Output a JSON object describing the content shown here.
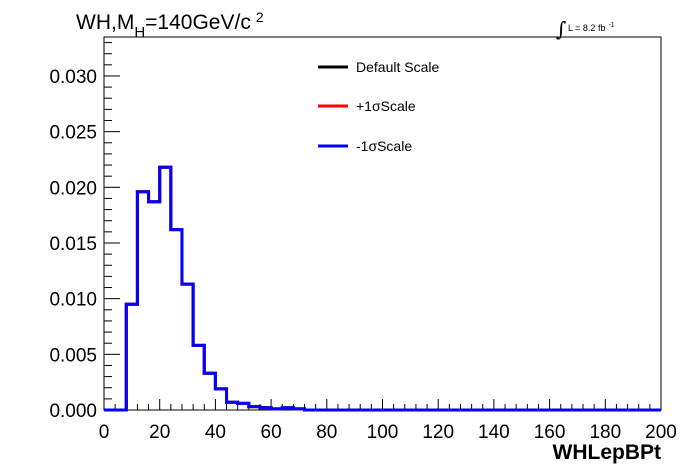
{
  "chart_data": {
    "type": "line",
    "title_parts": {
      "main": "WH,M",
      "sub": "H",
      "rest": "=140GeV/c",
      "sup": "2"
    },
    "lumi": {
      "integral": "∫",
      "text": "L = 8.2 fb",
      "sup": "-1"
    },
    "xlabel": "WHLepBPt",
    "ylabel": "",
    "xlim": [
      0,
      200
    ],
    "ylim": [
      0,
      0.0335
    ],
    "xticks": [
      "0",
      "20",
      "40",
      "60",
      "80",
      "100",
      "120",
      "140",
      "160",
      "180",
      "200"
    ],
    "yticks": [
      "0.000",
      "0.005",
      "0.010",
      "0.015",
      "0.020",
      "0.025",
      "0.030"
    ],
    "grid": false,
    "legend_position": "top-right",
    "bin_edges": [
      0,
      4,
      8,
      12,
      16,
      20,
      24,
      28,
      32,
      36,
      40,
      44,
      48,
      52,
      56,
      60,
      64,
      68,
      72,
      76,
      80,
      84,
      88,
      92,
      96,
      100,
      104,
      108,
      112,
      116,
      120,
      124,
      128,
      132,
      136,
      140,
      144,
      148,
      152,
      156,
      160,
      164,
      168,
      172,
      176,
      180,
      184,
      188,
      192,
      196,
      200
    ],
    "series": [
      {
        "name": "Default Scale",
        "color": "#000000",
        "values": [
          0,
          0,
          0.0095,
          0.0196,
          0.0187,
          0.0218,
          0.0162,
          0.0113,
          0.0058,
          0.0033,
          0.0019,
          0.0007,
          0.0006,
          0.0003,
          0.0002,
          0.0001,
          0.0002,
          0.0001,
          0,
          0,
          0,
          0,
          0,
          0,
          0,
          0,
          0,
          0,
          0,
          0,
          0,
          0,
          0,
          0,
          0,
          0,
          0,
          0,
          0,
          0,
          0,
          0,
          0,
          0,
          0,
          0,
          0,
          0,
          0,
          0
        ]
      },
      {
        "name": "+1σScale",
        "color": "#ff0000",
        "values": [
          0,
          0,
          0.0095,
          0.0196,
          0.0187,
          0.0218,
          0.0162,
          0.0113,
          0.0058,
          0.0033,
          0.0019,
          0.0007,
          0.0006,
          0.0003,
          0.0002,
          0.0001,
          0.0002,
          0.0001,
          0,
          0,
          0,
          0,
          0,
          0,
          0,
          0,
          0,
          0,
          0,
          0,
          0,
          0,
          0,
          0,
          0,
          0,
          0,
          0,
          0,
          0,
          0,
          0,
          0,
          0,
          0,
          0,
          0,
          0,
          0,
          0
        ]
      },
      {
        "name": "-1σScale",
        "color": "#0000ff",
        "values": [
          0,
          0,
          0.0095,
          0.0196,
          0.0187,
          0.0218,
          0.0162,
          0.0113,
          0.0058,
          0.0033,
          0.0019,
          0.0007,
          0.0006,
          0.0003,
          0.0002,
          0.0001,
          0.0002,
          0.0001,
          0,
          0,
          0,
          0,
          0,
          0,
          0,
          0,
          0,
          0,
          0,
          0,
          0,
          0,
          0,
          0,
          0,
          0,
          0,
          0,
          0,
          0,
          0,
          0,
          0,
          0,
          0,
          0,
          0,
          0,
          0,
          0
        ]
      }
    ]
  }
}
